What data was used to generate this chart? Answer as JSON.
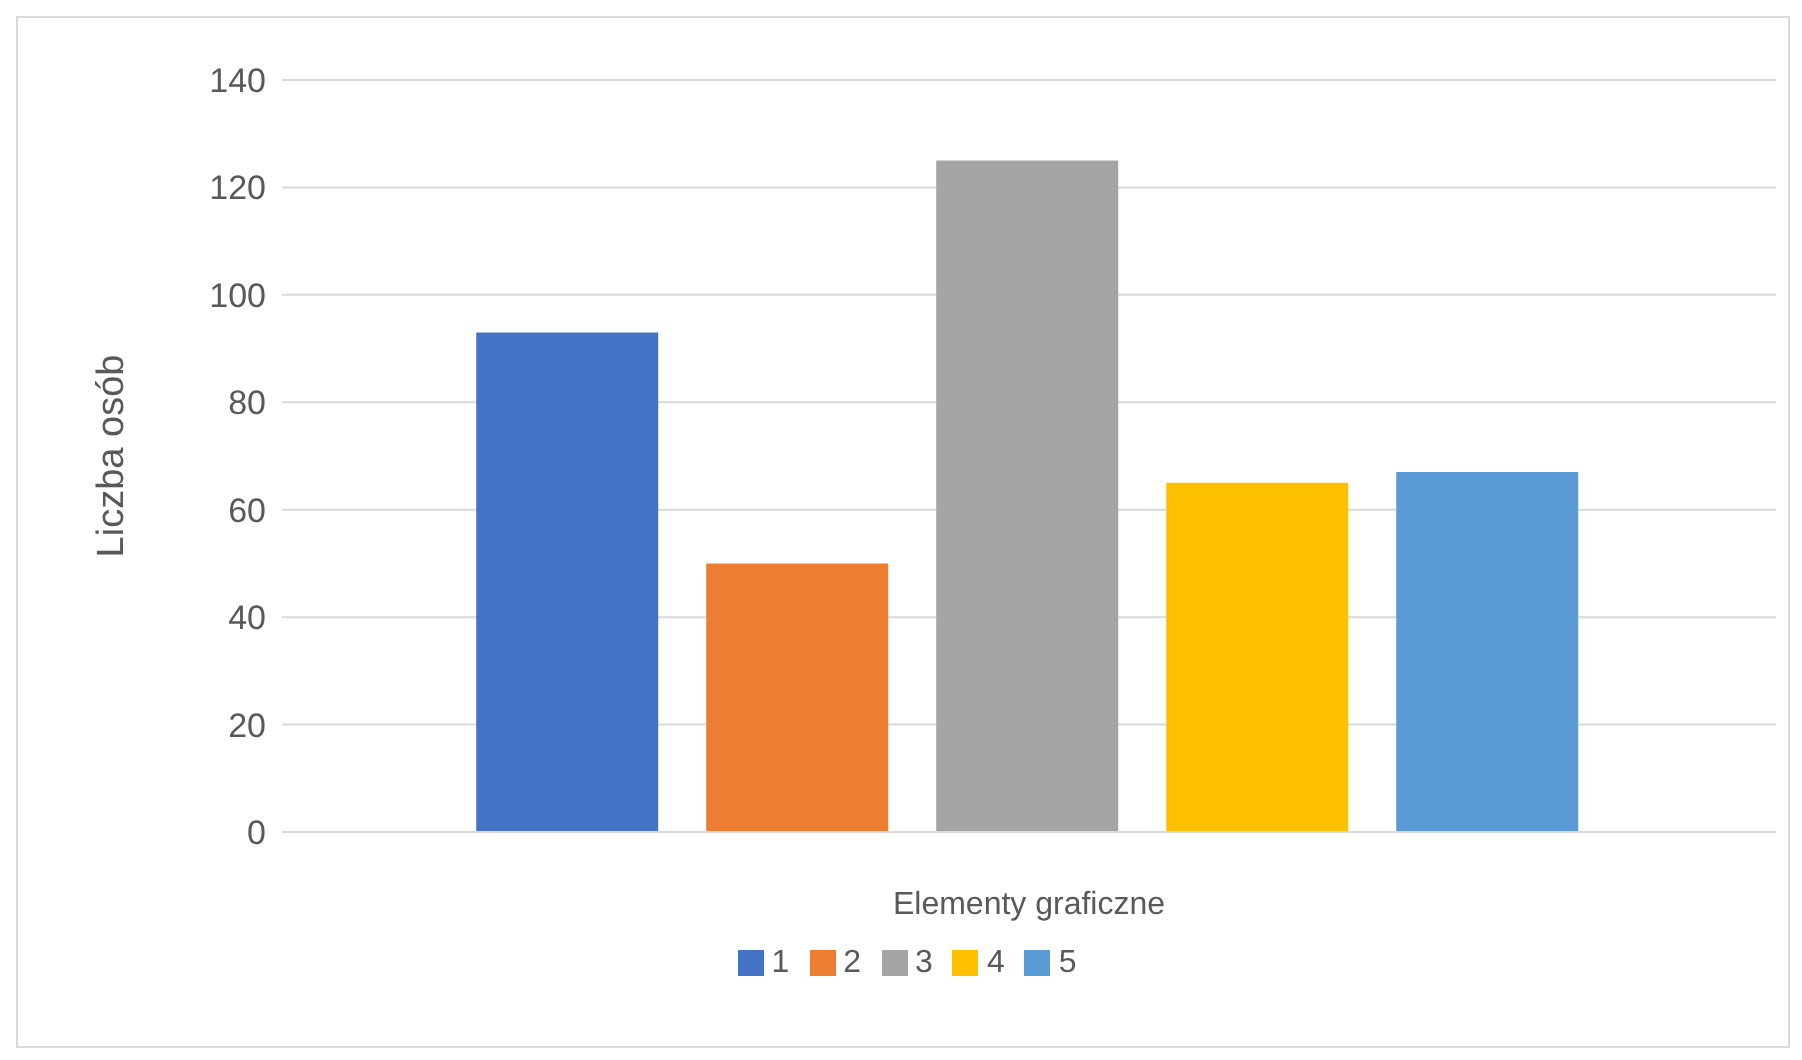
{
  "chart_data": {
    "type": "bar",
    "xlabel": "Elementy graficzne",
    "ylabel": "Liczba osób",
    "categories": [
      null
    ],
    "series": [
      {
        "name": "1",
        "color": "#4472c4",
        "values": [
          93
        ]
      },
      {
        "name": "2",
        "color": "#ed7d31",
        "values": [
          50
        ]
      },
      {
        "name": "3",
        "color": "#a5a5a5",
        "values": [
          125
        ]
      },
      {
        "name": "4",
        "color": "#ffc000",
        "values": [
          65
        ]
      },
      {
        "name": "5",
        "color": "#5b9bd5",
        "values": [
          67
        ]
      }
    ],
    "ylim": [
      0,
      140
    ],
    "yticks": [
      0,
      20,
      40,
      60,
      80,
      100,
      120,
      140
    ],
    "grid": "y",
    "legend": "bottom"
  }
}
